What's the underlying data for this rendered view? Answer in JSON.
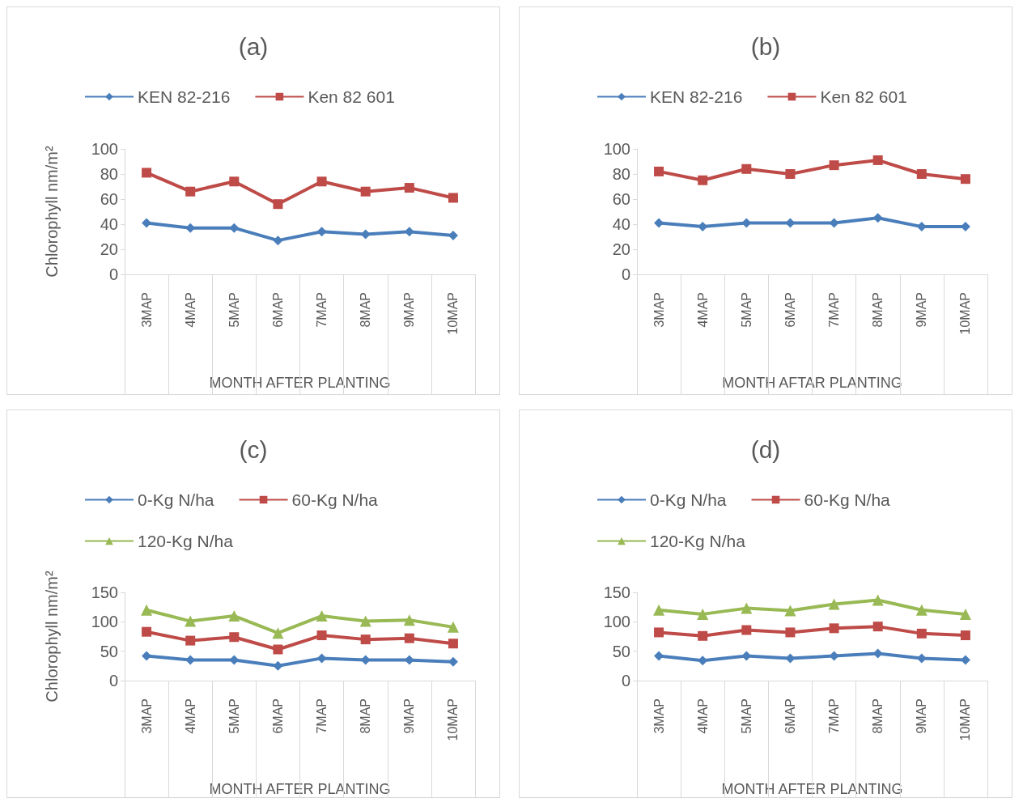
{
  "chart_data": [
    {
      "type": "line",
      "title": "(a)",
      "xlabel": "MONTH AFTER PLANTING",
      "ylabel": "Chlorophyll nm/m²",
      "categories": [
        "3MAP",
        "4MAP",
        "5MAP",
        "6MAP",
        "7MAP",
        "8MAP",
        "9MAP",
        "10MAP"
      ],
      "ylim": [
        0,
        100
      ],
      "yticks": [
        0,
        20,
        40,
        60,
        80,
        100
      ],
      "grid": false,
      "legend": "top",
      "series": [
        {
          "name": "KEN 82-216",
          "color": "#4a7ebb",
          "marker": "diamond",
          "values": [
            41,
            37,
            37,
            27,
            34,
            32,
            34,
            31
          ]
        },
        {
          "name": "Ken 82 601",
          "color": "#be4b48",
          "marker": "square",
          "values": [
            81,
            66,
            74,
            56,
            74,
            66,
            69,
            61
          ]
        }
      ]
    },
    {
      "type": "line",
      "title": "(b)",
      "xlabel": "MONTH AFTAR PLANTING",
      "categories": [
        "3MAP",
        "4MAP",
        "5MAP",
        "6MAP",
        "7MAP",
        "8MAP",
        "9MAP",
        "10MAP"
      ],
      "ylim": [
        0,
        100
      ],
      "yticks": [
        0,
        20,
        40,
        60,
        80,
        100
      ],
      "grid": false,
      "legend": "top",
      "series": [
        {
          "name": "KEN 82-216",
          "color": "#4a7ebb",
          "marker": "diamond",
          "values": [
            41,
            38,
            41,
            41,
            41,
            45,
            38,
            38
          ]
        },
        {
          "name": "Ken 82 601",
          "color": "#be4b48",
          "marker": "square",
          "values": [
            82,
            75,
            84,
            80,
            87,
            91,
            80,
            76
          ]
        }
      ]
    },
    {
      "type": "line",
      "title": "(c)",
      "xlabel": "MONTH AFTER PLANTING",
      "ylabel": "Chlorophyll nm/m²",
      "categories": [
        "3MAP",
        "4MAP",
        "5MAP",
        "6MAP",
        "7MAP",
        "8MAP",
        "9MAP",
        "10MAP"
      ],
      "ylim": [
        0,
        150
      ],
      "yticks": [
        0,
        50,
        100,
        150
      ],
      "grid": false,
      "legend": "top",
      "series": [
        {
          "name": "0-Kg N/ha",
          "color": "#4a7ebb",
          "marker": "diamond",
          "values": [
            42,
            35,
            35,
            25,
            38,
            35,
            35,
            32
          ]
        },
        {
          "name": "60-Kg N/ha",
          "color": "#be4b48",
          "marker": "square",
          "values": [
            83,
            68,
            74,
            53,
            77,
            70,
            72,
            63
          ]
        },
        {
          "name": "120-Kg N/ha",
          "color": "#98b954",
          "marker": "triangle",
          "values": [
            120,
            101,
            110,
            81,
            110,
            101,
            103,
            91
          ]
        }
      ]
    },
    {
      "type": "line",
      "title": "(d)",
      "xlabel": "MONTH AFTER PLANTING",
      "categories": [
        "3MAP",
        "4MAP",
        "5MAP",
        "6MAP",
        "7MAP",
        "8MAP",
        "9MAP",
        "10MAP"
      ],
      "ylim": [
        0,
        150
      ],
      "yticks": [
        0,
        50,
        100,
        150
      ],
      "grid": false,
      "legend": "top",
      "series": [
        {
          "name": "0-Kg N/ha",
          "color": "#4a7ebb",
          "marker": "diamond",
          "values": [
            42,
            34,
            42,
            38,
            42,
            46,
            38,
            35
          ]
        },
        {
          "name": "60-Kg N/ha",
          "color": "#be4b48",
          "marker": "square",
          "values": [
            82,
            76,
            86,
            82,
            89,
            92,
            80,
            77
          ]
        },
        {
          "name": "120-Kg N/ha",
          "color": "#98b954",
          "marker": "triangle",
          "values": [
            120,
            113,
            123,
            119,
            130,
            137,
            120,
            113
          ]
        }
      ]
    }
  ]
}
